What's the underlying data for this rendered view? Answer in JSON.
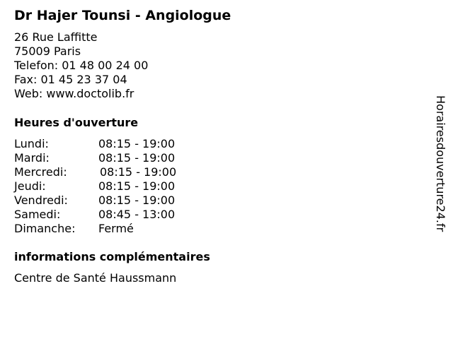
{
  "title": "Dr Hajer Tounsi - Angiologue",
  "address": [
    "26 Rue Laffitte",
    "75009 Paris",
    "Telefon: 01 48 00 24 00",
    "Fax: 01 45 23 37 04",
    "Web: www.doctolib.fr"
  ],
  "hours_heading": "Heures d'ouverture",
  "hours": [
    {
      "day": "Lundi:",
      "time": "08:15 - 19:00"
    },
    {
      "day": "Mardi:",
      "time": "08:15 - 19:00"
    },
    {
      "day": "Mercredi:",
      "time": "08:15 - 19:00"
    },
    {
      "day": "Jeudi:",
      "time": "08:15 - 19:00"
    },
    {
      "day": "Vendredi:",
      "time": "08:15 - 19:00"
    },
    {
      "day": "Samedi:",
      "time": "08:45 - 13:00"
    },
    {
      "day": "Dimanche:",
      "time": "Fermé"
    }
  ],
  "info_heading": "informations complémentaires",
  "info_text": "Centre de Santé Haussmann",
  "watermark": "Horairesdouverture24.fr"
}
